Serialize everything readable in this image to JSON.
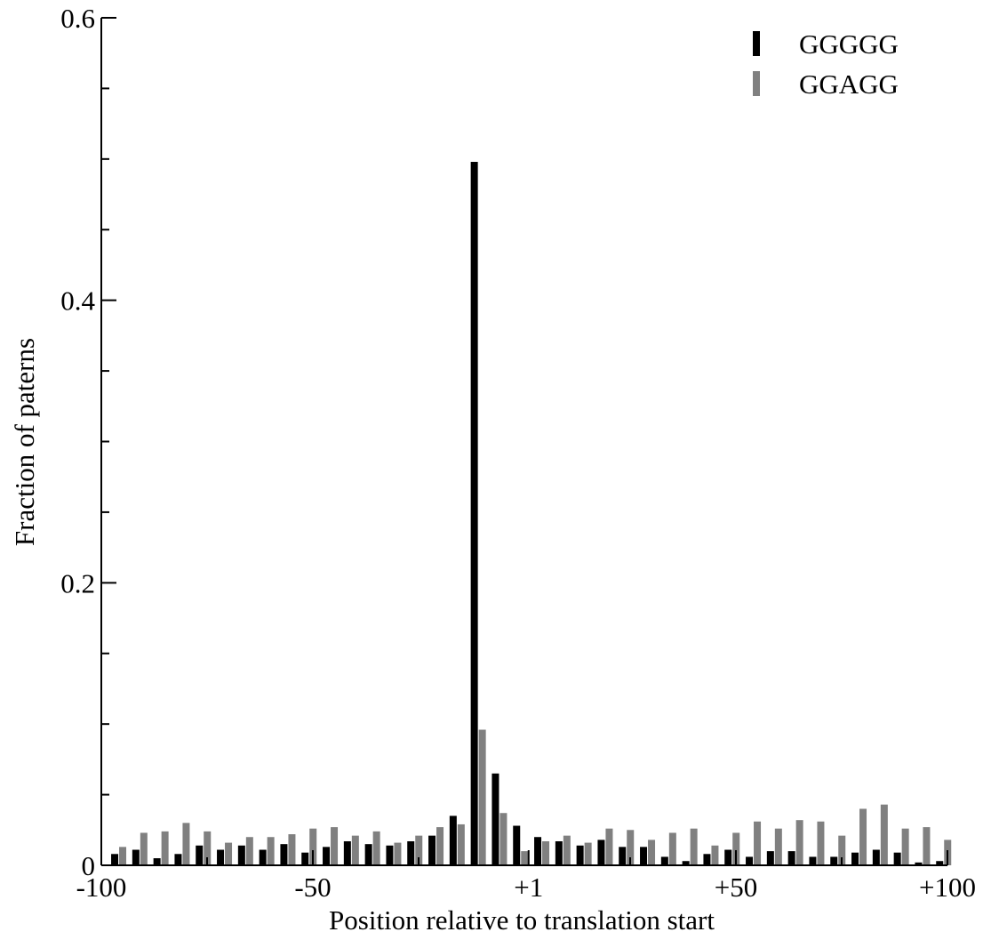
{
  "chart_data": {
    "type": "bar",
    "title": "",
    "xlabel": "Position relative to translation start",
    "ylabel": "Fraction of paterns",
    "xlim": [
      -100,
      100
    ],
    "ylim": [
      0,
      0.6
    ],
    "x_ticks": [
      {
        "value": -100,
        "label": "-100"
      },
      {
        "value": -50,
        "label": "-50"
      },
      {
        "value": 1,
        "label": "+1"
      },
      {
        "value": 50,
        "label": "+50"
      },
      {
        "value": 100,
        "label": "+100"
      }
    ],
    "y_ticks": [
      {
        "value": 0,
        "label": "0"
      },
      {
        "value": 0.2,
        "label": "0.2"
      },
      {
        "value": 0.4,
        "label": "0.4"
      },
      {
        "value": 0.6,
        "label": "0.6"
      }
    ],
    "y_minor_ticks": [
      0.05,
      0.1,
      0.15,
      0.25,
      0.3,
      0.35,
      0.45,
      0.5,
      0.55
    ],
    "x_minor_ticks": [
      -75,
      -25,
      25,
      75
    ],
    "grid": false,
    "legend_position": "top-right",
    "colors": {
      "GGGGG": "#000000",
      "GGAGG": "#808080"
    },
    "x": [
      -96,
      -91,
      -86,
      -81,
      -76,
      -71,
      -66,
      -61,
      -56,
      -51,
      -46,
      -41,
      -36,
      -31,
      -26,
      -21,
      -16,
      -11,
      -6,
      -1,
      4,
      9,
      14,
      19,
      24,
      29,
      34,
      39,
      44,
      49,
      54,
      59,
      64,
      69,
      74,
      79,
      84,
      89,
      94,
      99
    ],
    "series": [
      {
        "name": "GGGGG",
        "values": [
          0.008,
          0.011,
          0.005,
          0.008,
          0.014,
          0.011,
          0.014,
          0.011,
          0.015,
          0.009,
          0.013,
          0.017,
          0.015,
          0.014,
          0.017,
          0.021,
          0.035,
          0.498,
          0.065,
          0.028,
          0.02,
          0.017,
          0.014,
          0.018,
          0.013,
          0.013,
          0.006,
          0.003,
          0.008,
          0.011,
          0.006,
          0.01,
          0.01,
          0.006,
          0.006,
          0.009,
          0.011,
          0.009,
          0.002,
          0.003
        ]
      },
      {
        "name": "GGAGG",
        "values": [
          0.013,
          0.023,
          0.024,
          0.03,
          0.024,
          0.016,
          0.02,
          0.02,
          0.022,
          0.026,
          0.027,
          0.021,
          0.024,
          0.016,
          0.021,
          0.027,
          0.029,
          0.096,
          0.037,
          0.01,
          0.017,
          0.021,
          0.016,
          0.026,
          0.025,
          0.018,
          0.023,
          0.026,
          0.014,
          0.023,
          0.031,
          0.026,
          0.032,
          0.031,
          0.021,
          0.04,
          0.043,
          0.026,
          0.027,
          0.018
        ]
      }
    ]
  }
}
